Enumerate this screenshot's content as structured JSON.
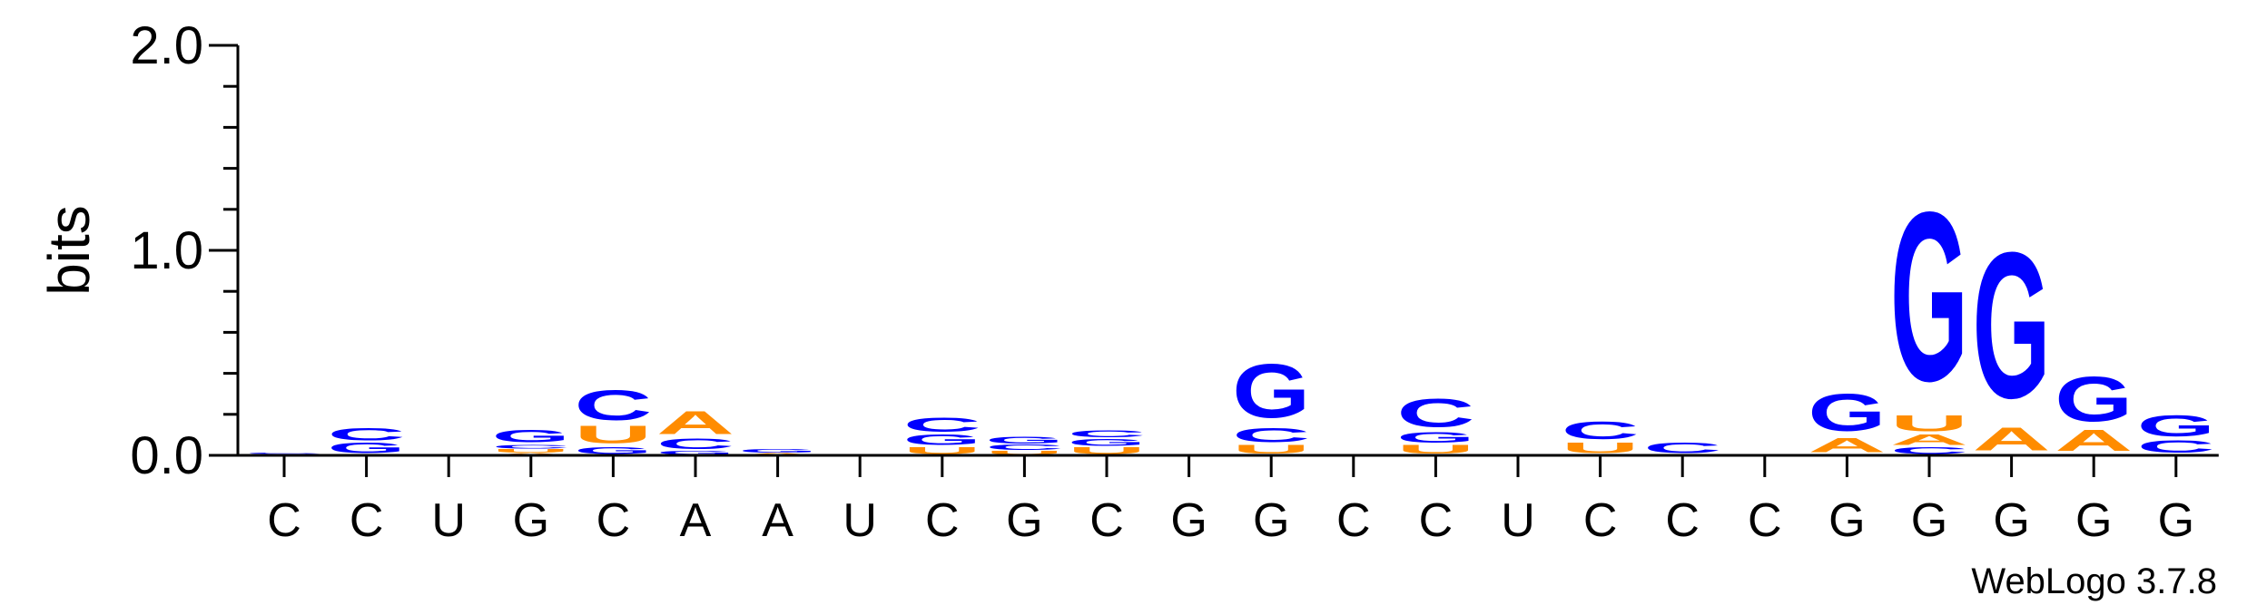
{
  "chart_data": {
    "type": "sequence-logo",
    "ylabel": "bits",
    "ylim": [
      0,
      2.0
    ],
    "yticks": [
      "0.0",
      "1.0",
      "2.0"
    ],
    "credit": "WebLogo 3.7.8",
    "colors": {
      "C": "#0000ff",
      "G": "#0000ff",
      "U": "#ff8c00",
      "A": "#ff8c00"
    },
    "positions": [
      {
        "label": "C",
        "stack": [
          [
            "G",
            0.005
          ],
          [
            "C",
            0.006
          ]
        ]
      },
      {
        "label": "C",
        "stack": [
          [
            "G",
            0.06
          ],
          [
            "C",
            0.07
          ]
        ]
      },
      {
        "label": "U",
        "stack": []
      },
      {
        "label": "G",
        "stack": [
          [
            "A",
            0.01
          ],
          [
            "U",
            0.02
          ],
          [
            "C",
            0.02
          ],
          [
            "G",
            0.07
          ]
        ]
      },
      {
        "label": "C",
        "stack": [
          [
            "G",
            0.04
          ],
          [
            "U",
            0.1
          ],
          [
            "C",
            0.17
          ]
        ]
      },
      {
        "label": "A",
        "stack": [
          [
            "G",
            0.02
          ],
          [
            "C",
            0.06
          ],
          [
            "A",
            0.13
          ]
        ]
      },
      {
        "label": "A",
        "stack": [
          [
            "A",
            0.01
          ],
          [
            "G",
            0.02
          ]
        ]
      },
      {
        "label": "U",
        "stack": []
      },
      {
        "label": "C",
        "stack": [
          [
            "U",
            0.04
          ],
          [
            "G",
            0.06
          ],
          [
            "C",
            0.08
          ]
        ]
      },
      {
        "label": "G",
        "stack": [
          [
            "U",
            0.02
          ],
          [
            "C",
            0.03
          ],
          [
            "G",
            0.04
          ]
        ]
      },
      {
        "label": "C",
        "stack": [
          [
            "U",
            0.04
          ],
          [
            "G",
            0.04
          ],
          [
            "C",
            0.04
          ]
        ]
      },
      {
        "label": "G",
        "stack": []
      },
      {
        "label": "G",
        "stack": [
          [
            "U",
            0.05
          ],
          [
            "C",
            0.08
          ],
          [
            "G",
            0.3
          ]
        ]
      },
      {
        "label": "C",
        "stack": []
      },
      {
        "label": "C",
        "stack": [
          [
            "U",
            0.05
          ],
          [
            "G",
            0.06
          ],
          [
            "C",
            0.16
          ]
        ]
      },
      {
        "label": "U",
        "stack": []
      },
      {
        "label": "C",
        "stack": [
          [
            "U",
            0.06
          ],
          [
            "C",
            0.1
          ]
        ]
      },
      {
        "label": "C",
        "stack": [
          [
            "C",
            0.06
          ]
        ]
      },
      {
        "label": "C",
        "stack": []
      },
      {
        "label": "G",
        "stack": [
          [
            "A",
            0.08
          ],
          [
            "G",
            0.21
          ]
        ]
      },
      {
        "label": "G",
        "stack": [
          [
            "C",
            0.04
          ],
          [
            "A",
            0.06
          ],
          [
            "U",
            0.09
          ],
          [
            "G",
            0.95
          ]
        ]
      },
      {
        "label": "G",
        "stack": [
          [
            "A",
            0.13
          ],
          [
            "G",
            0.82
          ]
        ]
      },
      {
        "label": "G",
        "stack": [
          [
            "A",
            0.12
          ],
          [
            "G",
            0.25
          ]
        ]
      },
      {
        "label": "G",
        "stack": [
          [
            "C",
            0.07
          ],
          [
            "G",
            0.12
          ]
        ]
      }
    ]
  }
}
